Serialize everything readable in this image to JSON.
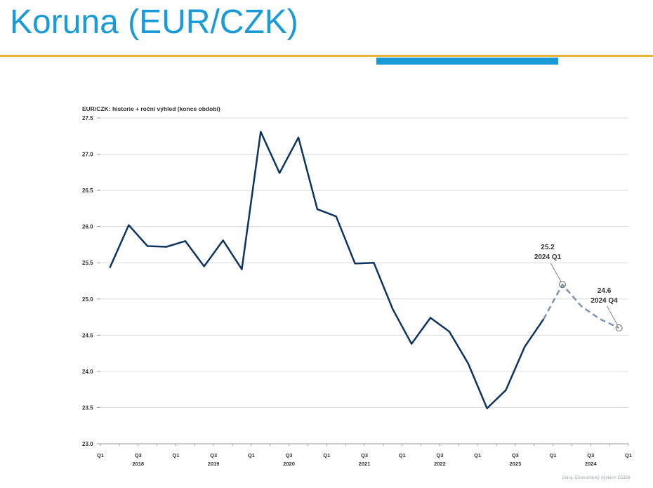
{
  "slide": {
    "title": "Koruna (EUR/CZK)",
    "source": "Zdroj: Ekonomický výzkum ČSOB"
  },
  "colors": {
    "title": "#1a9bd7",
    "rule": "#e8b63a",
    "accent": "#1a9bd7",
    "history_line": "#0d3461",
    "forecast_line": "#7b93ad"
  },
  "chart_data": {
    "type": "line",
    "title": "EUR/CZK: historie + roční výhled (konce období)",
    "ylim": [
      23.0,
      27.5
    ],
    "yticks": [
      "27.5",
      "27.0",
      "26.5",
      "26.0",
      "25.5",
      "25.0",
      "24.5",
      "24.0",
      "23.5",
      "23.0"
    ],
    "ytick_values": [
      27.5,
      27.0,
      26.5,
      26.0,
      25.5,
      25.0,
      24.5,
      24.0,
      23.5,
      23.0
    ],
    "grid": true,
    "x_quarter_labels": [
      {
        "label": "Q1",
        "quarter": 0
      },
      {
        "label": "Q3",
        "quarter": 2
      },
      {
        "label": "Q1",
        "quarter": 4
      },
      {
        "label": "Q3",
        "quarter": 6
      },
      {
        "label": "Q1",
        "quarter": 8
      },
      {
        "label": "Q3",
        "quarter": 10
      },
      {
        "label": "Q1",
        "quarter": 12
      },
      {
        "label": "Q3",
        "quarter": 14
      },
      {
        "label": "Q1",
        "quarter": 16
      },
      {
        "label": "Q3",
        "quarter": 18
      },
      {
        "label": "Q1",
        "quarter": 20
      },
      {
        "label": "Q3",
        "quarter": 22
      },
      {
        "label": "Q1",
        "quarter": 24
      },
      {
        "label": "Q3",
        "quarter": 26
      },
      {
        "label": "Q1",
        "quarter": 28
      }
    ],
    "x_year_labels": [
      {
        "label": "2018",
        "quarter": 2
      },
      {
        "label": "2019",
        "quarter": 6
      },
      {
        "label": "2020",
        "quarter": 10
      },
      {
        "label": "2021",
        "quarter": 14
      },
      {
        "label": "2022",
        "quarter": 18
      },
      {
        "label": "2023",
        "quarter": 22
      },
      {
        "label": "2024",
        "quarter": 26
      }
    ],
    "series": [
      {
        "style": "solid",
        "points": [
          [
            0.5,
            25.43
          ],
          [
            1.5,
            26.02
          ],
          [
            2.5,
            25.73
          ],
          [
            3.5,
            25.72
          ],
          [
            4.5,
            25.8
          ],
          [
            5.5,
            25.45
          ],
          [
            6.5,
            25.81
          ],
          [
            7.5,
            25.41
          ],
          [
            8.5,
            27.31
          ],
          [
            9.5,
            26.74
          ],
          [
            10.5,
            27.23
          ],
          [
            11.5,
            26.24
          ],
          [
            12.5,
            26.14
          ],
          [
            13.5,
            25.49
          ],
          [
            14.5,
            25.5
          ],
          [
            15.5,
            24.86
          ],
          [
            16.5,
            24.38
          ],
          [
            17.5,
            24.74
          ],
          [
            18.5,
            24.55
          ],
          [
            19.5,
            24.11
          ],
          [
            20.5,
            23.49
          ],
          [
            21.5,
            23.74
          ],
          [
            22.5,
            24.34
          ],
          [
            23.5,
            24.72
          ]
        ]
      },
      {
        "style": "dashed",
        "points": [
          [
            23.5,
            24.72
          ],
          [
            24.5,
            25.2
          ],
          [
            25.5,
            24.9
          ],
          [
            26.5,
            24.72
          ],
          [
            27.5,
            24.6
          ]
        ]
      }
    ],
    "annotations": [
      {
        "value": "25.2",
        "period": "2024 Q1",
        "quarter": 24.5,
        "y": 25.2
      },
      {
        "value": "24.6",
        "period": "2024 Q4",
        "quarter": 27.5,
        "y": 24.6
      }
    ]
  }
}
